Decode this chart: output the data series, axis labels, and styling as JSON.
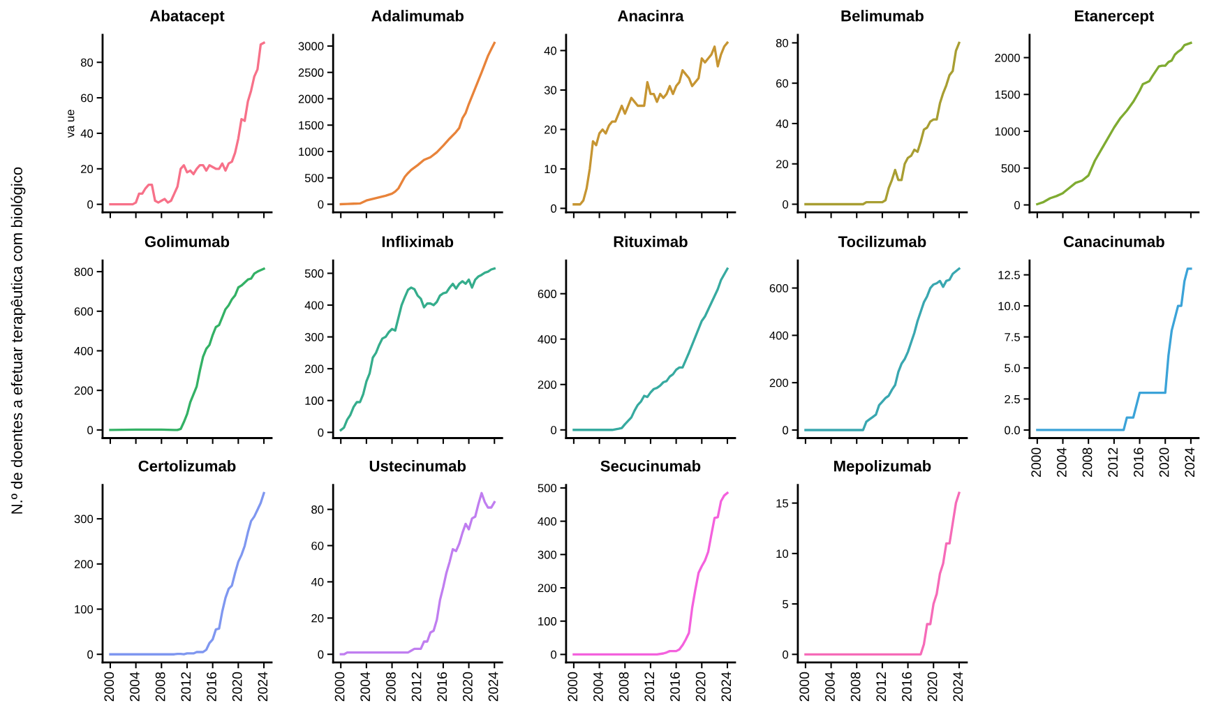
{
  "chart_data": [
    {
      "type": "line",
      "title": "Abatacept",
      "ylabel": "va ue",
      "annotations": [
        "N.º de doentes a efetuar terapêutica com biológico"
      ],
      "color": "#f77189",
      "tick_labels": "y",
      "xlim": [
        1998.8,
        2025.2
      ],
      "xticks": [
        2000,
        2004,
        2008,
        2012,
        2016,
        2020,
        2024
      ],
      "ylim": [
        -4.5,
        95.5
      ],
      "yticks": [
        0,
        20,
        40,
        60,
        80
      ],
      "x": [
        2000,
        2003.5,
        2004,
        2004.5,
        2005,
        2005.5,
        2006,
        2006.5,
        2007,
        2007.5,
        2008,
        2008.5,
        2009,
        2009.5,
        2010,
        2010.5,
        2011,
        2011.5,
        2012,
        2012.5,
        2013,
        2013.5,
        2014,
        2014.5,
        2015,
        2015.5,
        2016,
        2016.5,
        2017,
        2017.5,
        2018,
        2018.5,
        2019,
        2019.5,
        2020,
        2020.5,
        2021,
        2021.5,
        2022,
        2022.5,
        2023,
        2023.5,
        2024
      ],
      "values": [
        0,
        0,
        1,
        6,
        6,
        9,
        11,
        11,
        2,
        1,
        2,
        3,
        1,
        2,
        6,
        10,
        20,
        22,
        18,
        19,
        17,
        20,
        22,
        22,
        19,
        22,
        21,
        20,
        20,
        23,
        19,
        23,
        24,
        29,
        37,
        48,
        47,
        58,
        64,
        72,
        76,
        90,
        91
      ]
    },
    {
      "type": "line",
      "title": "Adalimumab",
      "color": "#e8833a",
      "tick_labels": "y",
      "xlim": [
        1998.8,
        2025.2
      ],
      "xticks": [
        2000,
        2004,
        2008,
        2012,
        2016,
        2020,
        2024
      ],
      "ylim": [
        -153,
        3213
      ],
      "yticks": [
        0,
        500,
        1000,
        1500,
        2000,
        2500,
        3000
      ],
      "x": [
        2000,
        2001,
        2002,
        2003,
        2004,
        2005,
        2006,
        2007,
        2008,
        2008.5,
        2009,
        2010,
        2010.5,
        2011,
        2012,
        2013,
        2014,
        2015,
        2016,
        2017,
        2018,
        2018.5,
        2019,
        2019.5,
        2020,
        2021,
        2022,
        2023,
        2023.5,
        2024
      ],
      "values": [
        0,
        5,
        10,
        15,
        70,
        100,
        130,
        160,
        200,
        240,
        300,
        520,
        590,
        650,
        740,
        840,
        890,
        985,
        1110,
        1245,
        1370,
        1445,
        1630,
        1730,
        1900,
        2200,
        2500,
        2815,
        2940,
        3060
      ]
    },
    {
      "type": "line",
      "title": "Anacinra",
      "color": "#c69532",
      "tick_labels": "y",
      "xlim": [
        1998.8,
        2025.2
      ],
      "xticks": [
        2000,
        2004,
        2008,
        2012,
        2016,
        2020,
        2024
      ],
      "ylim": [
        -1,
        44
      ],
      "yticks": [
        0,
        10,
        20,
        30,
        40
      ],
      "x": [
        2000,
        2001,
        2001.5,
        2002,
        2002.5,
        2003,
        2003.5,
        2004,
        2004.5,
        2005,
        2005.5,
        2006,
        2006.5,
        2007,
        2007.5,
        2008,
        2008.5,
        2009,
        2009.5,
        2010,
        2011,
        2011.5,
        2012,
        2012.5,
        2013,
        2013.5,
        2014,
        2014.5,
        2015,
        2015.5,
        2016,
        2016.5,
        2017,
        2017.5,
        2018,
        2018.5,
        2019,
        2019.5,
        2020,
        2020.5,
        2021,
        2021.5,
        2022,
        2022.5,
        2023,
        2023.5,
        2024
      ],
      "values": [
        1,
        1,
        2,
        5,
        10,
        17,
        16,
        19,
        20,
        19,
        21,
        22,
        22,
        24,
        26,
        24,
        26,
        28,
        27,
        26,
        26,
        32,
        29,
        29,
        27,
        29,
        28,
        29,
        31,
        29,
        31,
        32,
        35,
        34,
        33,
        31,
        32,
        33,
        38,
        37,
        38,
        39,
        41,
        36,
        39,
        41,
        42
      ]
    },
    {
      "type": "line",
      "title": "Belimumab",
      "color": "#a89e32",
      "tick_labels": "y",
      "xlim": [
        1998.8,
        2025.2
      ],
      "xticks": [
        2000,
        2004,
        2008,
        2012,
        2016,
        2020,
        2024
      ],
      "ylim": [
        -4,
        84
      ],
      "yticks": [
        0,
        20,
        40,
        60,
        80
      ],
      "x": [
        2000,
        2009,
        2009.5,
        2012,
        2012.5,
        2013,
        2013.5,
        2014,
        2014.5,
        2015,
        2015.5,
        2016,
        2016.5,
        2017,
        2017.5,
        2018,
        2018.5,
        2019,
        2019.5,
        2020,
        2020.5,
        2021,
        2021.5,
        2022,
        2022.5,
        2023,
        2023.5,
        2024
      ],
      "values": [
        0,
        0,
        1,
        1,
        2,
        8,
        12,
        17,
        12,
        12,
        20,
        23,
        24,
        27,
        26,
        31,
        37,
        38,
        41,
        42,
        42,
        50,
        55,
        59,
        64,
        66,
        76,
        80
      ]
    },
    {
      "type": "line",
      "title": "Etanercept",
      "color": "#7fab31",
      "tick_labels": "y",
      "xlim": [
        1998.8,
        2025.2
      ],
      "xticks": [
        2000,
        2004,
        2008,
        2012,
        2016,
        2020,
        2024
      ],
      "ylim": [
        -100,
        2310
      ],
      "yticks": [
        0,
        500,
        1000,
        1500,
        2000
      ],
      "x": [
        2000,
        2001,
        2002,
        2003,
        2004,
        2005,
        2006,
        2007,
        2008,
        2009,
        2010,
        2011,
        2012,
        2013,
        2014,
        2015,
        2016,
        2016.5,
        2017,
        2017.5,
        2018,
        2019,
        2019.5,
        2020,
        2020.5,
        2021,
        2021.5,
        2022,
        2022.5,
        2023,
        2024
      ],
      "values": [
        10,
        40,
        90,
        120,
        160,
        230,
        300,
        330,
        400,
        600,
        750,
        900,
        1050,
        1180,
        1280,
        1400,
        1550,
        1640,
        1660,
        1680,
        1750,
        1880,
        1890,
        1890,
        1940,
        1960,
        2040,
        2080,
        2110,
        2170,
        2200
      ]
    },
    {
      "type": "line",
      "title": "Golimumab",
      "color": "#33b165",
      "tick_labels": "y",
      "xlim": [
        1998.8,
        2025.2
      ],
      "xticks": [
        2000,
        2004,
        2008,
        2012,
        2016,
        2020,
        2024
      ],
      "ylim": [
        -41,
        856
      ],
      "yticks": [
        0,
        200,
        400,
        600,
        800
      ],
      "x": [
        2000,
        2004,
        2008,
        2010,
        2010.5,
        2011,
        2011.5,
        2012,
        2012.5,
        2013,
        2013.5,
        2014,
        2014.5,
        2015,
        2015.5,
        2016,
        2016.5,
        2017,
        2017.5,
        2018,
        2018.5,
        2019,
        2019.5,
        2020,
        2020.5,
        2021,
        2021.5,
        2022,
        2022.5,
        2023,
        2024
      ],
      "values": [
        0,
        2,
        2,
        0,
        0,
        5,
        40,
        80,
        140,
        180,
        220,
        300,
        370,
        410,
        430,
        480,
        520,
        530,
        570,
        610,
        630,
        660,
        680,
        720,
        730,
        745,
        760,
        765,
        790,
        800,
        815
      ]
    },
    {
      "type": "line",
      "title": "Infliximab",
      "color": "#35ad8c",
      "tick_labels": "y",
      "xlim": [
        1998.8,
        2025.2
      ],
      "xticks": [
        2000,
        2004,
        2008,
        2012,
        2016,
        2020,
        2024
      ],
      "ylim": [
        -18,
        540
      ],
      "yticks": [
        0,
        100,
        200,
        300,
        400,
        500
      ],
      "x": [
        2000,
        2000.5,
        2001,
        2001.5,
        2002,
        2002.5,
        2003,
        2003.5,
        2004,
        2004.5,
        2005,
        2005.5,
        2006,
        2006.5,
        2007,
        2007.5,
        2008,
        2008.5,
        2009,
        2009.5,
        2010,
        2010.5,
        2011,
        2011.5,
        2012,
        2012.5,
        2013,
        2013.5,
        2014,
        2014.5,
        2015,
        2015.5,
        2016,
        2016.5,
        2017,
        2017.5,
        2018,
        2018.5,
        2019,
        2019.5,
        2020,
        2020.5,
        2021,
        2021.5,
        2022,
        2022.5,
        2023,
        2023.5,
        2024
      ],
      "values": [
        7,
        15,
        40,
        55,
        80,
        95,
        95,
        120,
        160,
        185,
        235,
        250,
        275,
        295,
        300,
        315,
        325,
        320,
        360,
        400,
        425,
        448,
        455,
        450,
        430,
        420,
        393,
        405,
        405,
        400,
        410,
        430,
        437,
        440,
        455,
        467,
        452,
        467,
        475,
        467,
        480,
        455,
        480,
        490,
        495,
        502,
        505,
        512,
        515
      ]
    },
    {
      "type": "line",
      "title": "Rituximab",
      "color": "#37aaa0",
      "tick_labels": "y",
      "xlim": [
        1998.8,
        2025.2
      ],
      "xticks": [
        2000,
        2004,
        2008,
        2012,
        2016,
        2020,
        2024
      ],
      "ylim": [
        -36,
        746
      ],
      "yticks": [
        0,
        200,
        400,
        600
      ],
      "x": [
        2000,
        2006,
        2007,
        2007.5,
        2008,
        2009,
        2009.5,
        2010,
        2010.5,
        2011,
        2011.5,
        2012,
        2012.5,
        2013,
        2013.5,
        2014,
        2014.5,
        2015,
        2015.5,
        2016,
        2016.5,
        2017,
        2018,
        2019,
        2020,
        2020.5,
        2021,
        2021.5,
        2022,
        2022.5,
        2023,
        2024
      ],
      "values": [
        0,
        0,
        5,
        8,
        25,
        55,
        85,
        110,
        125,
        150,
        145,
        165,
        180,
        185,
        195,
        210,
        215,
        235,
        245,
        265,
        275,
        275,
        340,
        410,
        480,
        500,
        530,
        560,
        590,
        620,
        660,
        710
      ]
    },
    {
      "type": "line",
      "title": "Tocilizumab",
      "color": "#39a7b0",
      "tick_labels": "y",
      "xlim": [
        1998.8,
        2025.2
      ],
      "xticks": [
        2000,
        2004,
        2008,
        2012,
        2016,
        2020,
        2024
      ],
      "ylim": [
        -34,
        716
      ],
      "yticks": [
        0,
        200,
        400,
        600
      ],
      "x": [
        2000,
        2009,
        2009.5,
        2010,
        2010.5,
        2011,
        2011.5,
        2012,
        2012.5,
        2013,
        2013.5,
        2014,
        2014.5,
        2015,
        2015.5,
        2016,
        2016.5,
        2017,
        2017.5,
        2018,
        2018.5,
        2019,
        2019.5,
        2020,
        2020.5,
        2021,
        2021.5,
        2022,
        2022.5,
        2023,
        2024
      ],
      "values": [
        0,
        0,
        35,
        45,
        55,
        65,
        105,
        120,
        135,
        145,
        170,
        190,
        245,
        280,
        300,
        330,
        370,
        410,
        460,
        500,
        540,
        565,
        600,
        615,
        620,
        630,
        605,
        630,
        635,
        660,
        682
      ]
    },
    {
      "type": "line",
      "title": "Canacinumab",
      "color": "#3ba3d8",
      "xlim": [
        1998.8,
        2025.2
      ],
      "xticks": [
        2000,
        2004,
        2008,
        2012,
        2016,
        2020,
        2024
      ],
      "ylim": [
        -0.65,
        13.65
      ],
      "yticks": [
        {
          "value": 0,
          "label": "0.0"
        },
        2.5,
        {
          "value": 5,
          "label": "5.0"
        },
        7.5,
        {
          "value": 10,
          "label": "10.0"
        },
        12.5
      ],
      "x": [
        2000,
        2013.5,
        2014,
        2015,
        2016,
        2020,
        2020.5,
        2021,
        2022,
        2022.5,
        2023,
        2023.5,
        2024
      ],
      "values": [
        0,
        0,
        1,
        1,
        3,
        3,
        6,
        8,
        10,
        10,
        12,
        13,
        13
      ]
    },
    {
      "type": "line",
      "title": "Certolizumab",
      "color": "#7f97f0",
      "xlim": [
        1998.8,
        2025.2
      ],
      "xticks": [
        2000,
        2004,
        2008,
        2012,
        2016,
        2020,
        2024
      ],
      "ylim": [
        -18,
        375
      ],
      "yticks": [
        0,
        100,
        200,
        300
      ],
      "x": [
        2000,
        2010,
        2010.5,
        2011,
        2011.5,
        2012,
        2013,
        2013.5,
        2014,
        2014.5,
        2015,
        2015.5,
        2016,
        2016.5,
        2017,
        2017.5,
        2018,
        2018.5,
        2019,
        2019.5,
        2020,
        2020.5,
        2021,
        2021.5,
        2022,
        2022.5,
        2023,
        2023.5,
        2024
      ],
      "values": [
        0,
        0,
        1,
        1,
        0,
        2,
        2,
        5,
        5,
        5,
        10,
        25,
        33,
        55,
        57,
        95,
        125,
        145,
        152,
        180,
        205,
        220,
        240,
        270,
        295,
        305,
        320,
        335,
        357
      ]
    },
    {
      "type": "line",
      "title": "Ustecinumab",
      "color": "#c07ef0",
      "xlim": [
        1998.8,
        2025.2
      ],
      "xticks": [
        2000,
        2004,
        2008,
        2012,
        2016,
        2020,
        2024
      ],
      "ylim": [
        -4.5,
        93.5
      ],
      "yticks": [
        0,
        20,
        40,
        60,
        80
      ],
      "x": [
        2000,
        2000.5,
        2001,
        2010.5,
        2011,
        2011.5,
        2012.5,
        2013,
        2013.5,
        2014,
        2014.5,
        2015,
        2015.5,
        2016,
        2016.5,
        2017,
        2017.5,
        2018,
        2018.5,
        2019,
        2019.5,
        2020,
        2020.5,
        2021,
        2021.5,
        2022,
        2022.5,
        2023,
        2023.5,
        2024
      ],
      "values": [
        0,
        0,
        1,
        1,
        2,
        3,
        3,
        7,
        7,
        12,
        13,
        19,
        30,
        37,
        45,
        51,
        58,
        57,
        61,
        67,
        72,
        69,
        75,
        76,
        83,
        89,
        84,
        81,
        81,
        84
      ]
    },
    {
      "type": "line",
      "title": "Secucinumab",
      "color": "#f461dd",
      "xlim": [
        1998.8,
        2025.2
      ],
      "xticks": [
        2000,
        2004,
        2008,
        2012,
        2016,
        2020,
        2024
      ],
      "ylim": [
        -24,
        509
      ],
      "yticks": [
        0,
        100,
        200,
        300,
        400,
        500
      ],
      "x": [
        2000,
        2013,
        2014,
        2014.5,
        2015,
        2016,
        2016.5,
        2017,
        2017.5,
        2018,
        2018.5,
        2019,
        2019.5,
        2020,
        2020.5,
        2021,
        2021.5,
        2022,
        2022.5,
        2023,
        2023.5,
        2024
      ],
      "values": [
        0,
        0,
        3,
        6,
        10,
        10,
        15,
        28,
        45,
        65,
        140,
        195,
        245,
        265,
        282,
        308,
        360,
        410,
        412,
        460,
        477,
        485
      ]
    },
    {
      "type": "line",
      "title": "Mepolizumab",
      "color": "#f66bb8",
      "xlim": [
        1998.8,
        2025.2
      ],
      "xticks": [
        2000,
        2004,
        2008,
        2012,
        2016,
        2020,
        2024
      ],
      "ylim": [
        -0.8,
        16.8
      ],
      "yticks": [
        0,
        5,
        10,
        15
      ],
      "x": [
        2000,
        2018,
        2018.5,
        2019,
        2019.5,
        2020,
        2020.5,
        2021,
        2021.5,
        2022,
        2022.5,
        2023,
        2023.5,
        2024
      ],
      "values": [
        0,
        0,
        1,
        3,
        3,
        5,
        6,
        8,
        9,
        11,
        11,
        13,
        15,
        16
      ]
    }
  ]
}
